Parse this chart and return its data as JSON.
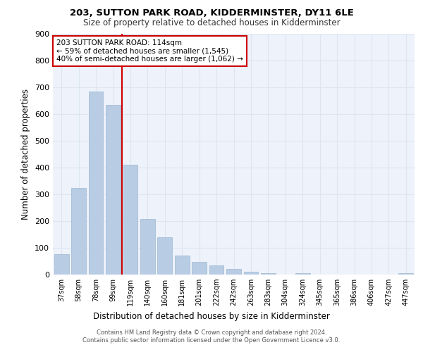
{
  "title1": "203, SUTTON PARK ROAD, KIDDERMINSTER, DY11 6LE",
  "title2": "Size of property relative to detached houses in Kidderminster",
  "xlabel": "Distribution of detached houses by size in Kidderminster",
  "ylabel": "Number of detached properties",
  "categories": [
    "37sqm",
    "58sqm",
    "78sqm",
    "99sqm",
    "119sqm",
    "140sqm",
    "160sqm",
    "181sqm",
    "201sqm",
    "222sqm",
    "242sqm",
    "263sqm",
    "283sqm",
    "304sqm",
    "324sqm",
    "345sqm",
    "365sqm",
    "386sqm",
    "406sqm",
    "427sqm",
    "447sqm"
  ],
  "values": [
    75,
    322,
    682,
    632,
    411,
    207,
    140,
    70,
    46,
    33,
    20,
    11,
    6,
    1,
    4,
    1,
    0,
    0,
    0,
    0,
    6
  ],
  "bar_color": "#b8cce4",
  "bar_edge_color": "#9db8d2",
  "grid_color": "#dce6f1",
  "bg_color": "#eef2fa",
  "vline_color": "#cc0000",
  "vline_x_index": 3.5,
  "annotation_text": "203 SUTTON PARK ROAD: 114sqm\n← 59% of detached houses are smaller (1,545)\n40% of semi-detached houses are larger (1,062) →",
  "annotation_box_color": "#cc0000",
  "footer": "Contains HM Land Registry data © Crown copyright and database right 2024.\nContains public sector information licensed under the Open Government Licence v3.0.",
  "ylim": [
    0,
    900
  ],
  "yticks": [
    0,
    100,
    200,
    300,
    400,
    500,
    600,
    700,
    800,
    900
  ]
}
